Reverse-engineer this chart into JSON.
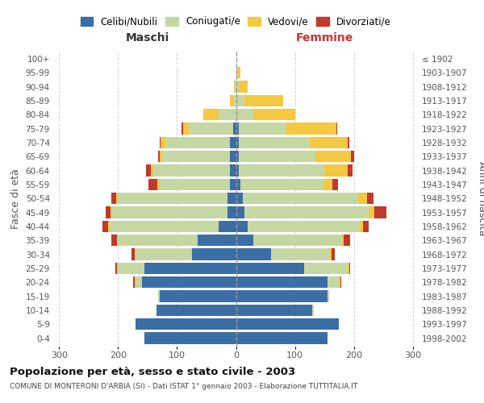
{
  "age_groups": [
    "0-4",
    "5-9",
    "10-14",
    "15-19",
    "20-24",
    "25-29",
    "30-34",
    "35-39",
    "40-44",
    "45-49",
    "50-54",
    "55-59",
    "60-64",
    "65-69",
    "70-74",
    "75-79",
    "80-84",
    "85-89",
    "90-94",
    "95-99",
    "100+"
  ],
  "birth_years": [
    "1998-2002",
    "1993-1997",
    "1988-1992",
    "1983-1987",
    "1978-1982",
    "1973-1977",
    "1968-1972",
    "1963-1967",
    "1958-1962",
    "1953-1957",
    "1948-1952",
    "1943-1947",
    "1938-1942",
    "1933-1937",
    "1928-1932",
    "1923-1927",
    "1918-1922",
    "1913-1917",
    "1908-1912",
    "1903-1907",
    "≤ 1902"
  ],
  "males": {
    "celibi": [
      155,
      170,
      135,
      130,
      160,
      155,
      75,
      65,
      30,
      15,
      15,
      10,
      10,
      10,
      10,
      5,
      0,
      0,
      0,
      0,
      0
    ],
    "coniugati": [
      0,
      0,
      0,
      2,
      10,
      45,
      95,
      135,
      185,
      195,
      185,
      120,
      130,
      115,
      110,
      75,
      30,
      5,
      2,
      0,
      0
    ],
    "vedovi": [
      0,
      0,
      0,
      0,
      2,
      2,
      2,
      2,
      2,
      3,
      3,
      3,
      5,
      5,
      8,
      10,
      25,
      5,
      1,
      0,
      0
    ],
    "divorziati": [
      0,
      0,
      0,
      0,
      2,
      2,
      5,
      10,
      10,
      8,
      8,
      15,
      8,
      2,
      2,
      2,
      1,
      0,
      0,
      0,
      0
    ]
  },
  "females": {
    "nubili": [
      155,
      175,
      130,
      155,
      155,
      115,
      60,
      30,
      20,
      15,
      12,
      8,
      5,
      5,
      5,
      5,
      0,
      0,
      0,
      0,
      0
    ],
    "coniugate": [
      0,
      0,
      2,
      3,
      20,
      75,
      100,
      150,
      190,
      210,
      195,
      140,
      145,
      130,
      120,
      80,
      30,
      15,
      5,
      2,
      0
    ],
    "vedove": [
      0,
      0,
      0,
      0,
      2,
      2,
      2,
      3,
      5,
      10,
      15,
      15,
      40,
      60,
      65,
      85,
      70,
      65,
      15,
      5,
      0
    ],
    "divorziate": [
      0,
      0,
      0,
      0,
      2,
      2,
      5,
      10,
      10,
      20,
      12,
      10,
      8,
      5,
      2,
      2,
      1,
      0,
      0,
      0,
      0
    ]
  },
  "colors": {
    "celibi": "#3b6ea5",
    "coniugati": "#c5d8a4",
    "vedovi": "#f5c842",
    "divorziati": "#c0392b"
  },
  "title": "Popolazione per età, sesso e stato civile - 2003",
  "subtitle": "COMUNE DI MONTERONI D'ARBIA (SI) - Dati ISTAT 1° gennaio 2003 - Elaborazione TUTTITALIA.IT",
  "xlabel_left": "Maschi",
  "xlabel_right": "Femmine",
  "ylabel": "Fasce di età",
  "ylabel_right": "Anni di nascita",
  "xlim": 310,
  "legend_labels": [
    "Celibi/Nubili",
    "Coniugati/e",
    "Vedovi/e",
    "Divorziati/e"
  ],
  "bg_color": "#ffffff",
  "plot_bg": "#ffffff",
  "grid_color": "#cccccc"
}
